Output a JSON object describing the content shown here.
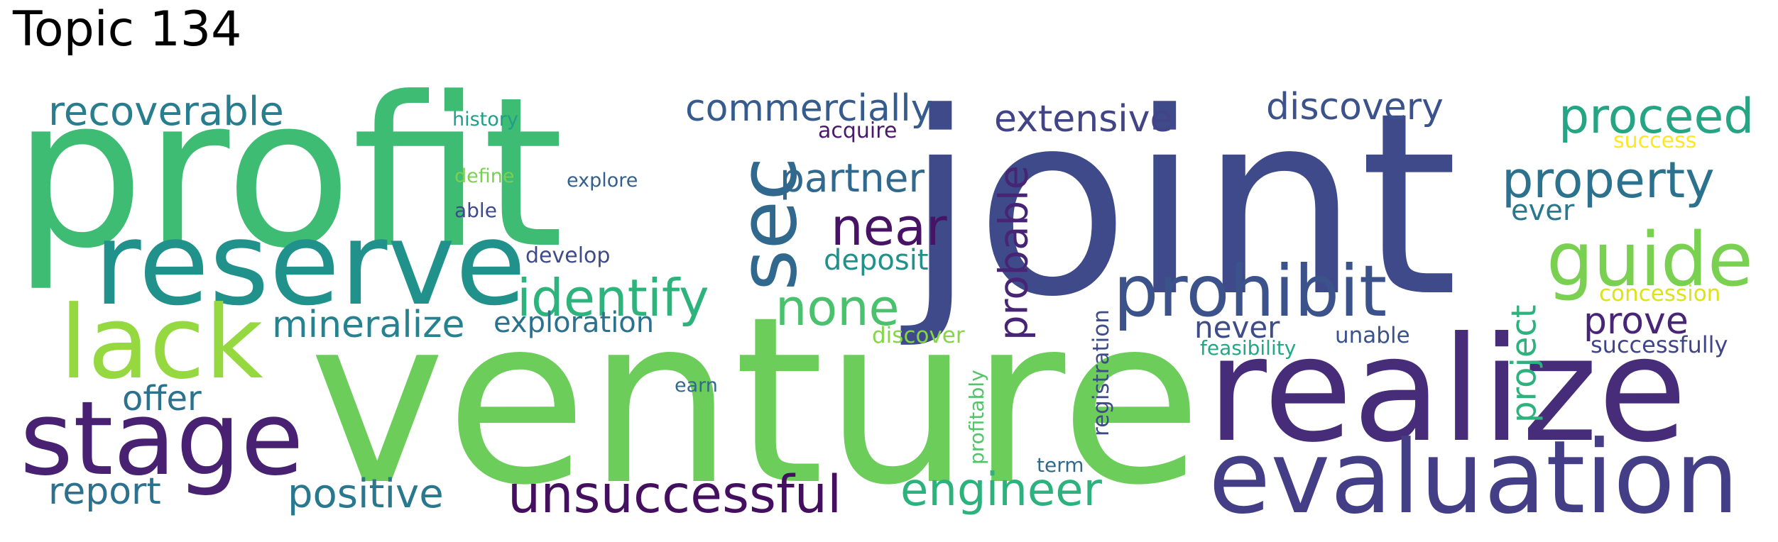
{
  "title": "Topic 134",
  "words": [
    {
      "text": "profit",
      "color": "#3fbc73"
    },
    {
      "text": "joint",
      "color": "#3e4a89"
    },
    {
      "text": "venture",
      "color": "#6ccd5a"
    },
    {
      "text": "realize",
      "color": "#472c7a"
    },
    {
      "text": "reserve",
      "color": "#21918c"
    },
    {
      "text": "evaluation",
      "color": "#433e85"
    },
    {
      "text": "stage",
      "color": "#482173"
    },
    {
      "text": "lack",
      "color": "#95d840"
    },
    {
      "text": "sec",
      "color": "#31688e"
    },
    {
      "text": "prohibit",
      "color": "#3b528b"
    },
    {
      "text": "guide",
      "color": "#7ad151"
    },
    {
      "text": "unsuccessful",
      "color": "#440f5e"
    },
    {
      "text": "probable",
      "color": "#482475"
    },
    {
      "text": "none",
      "color": "#4ac16d"
    },
    {
      "text": "property",
      "color": "#2c728e"
    },
    {
      "text": "proceed",
      "color": "#25a584"
    },
    {
      "text": "identify",
      "color": "#2eb37c"
    },
    {
      "text": "near",
      "color": "#471365"
    },
    {
      "text": "engineer",
      "color": "#2db27d"
    },
    {
      "text": "recoverable",
      "color": "#287d8e"
    },
    {
      "text": "positive",
      "color": "#2a788e"
    },
    {
      "text": "mineralize",
      "color": "#26828e"
    },
    {
      "text": "partner",
      "color": "#31688e"
    },
    {
      "text": "commercially",
      "color": "#365c8d"
    },
    {
      "text": "extensive",
      "color": "#414487"
    },
    {
      "text": "discovery",
      "color": "#3b528b"
    },
    {
      "text": "exploration",
      "color": "#2c728e"
    },
    {
      "text": "project",
      "color": "#2db27d"
    },
    {
      "text": "report",
      "color": "#2c728e"
    },
    {
      "text": "offer",
      "color": "#2c728e"
    },
    {
      "text": "prove",
      "color": "#482576"
    },
    {
      "text": "never",
      "color": "#3e4c8a"
    },
    {
      "text": "ever",
      "color": "#2a788e"
    },
    {
      "text": "deposit",
      "color": "#21918c"
    },
    {
      "text": "registration",
      "color": "#3e4c8a"
    },
    {
      "text": "successfully",
      "color": "#414487"
    },
    {
      "text": "concession",
      "color": "#dde318"
    },
    {
      "text": "success",
      "color": "#fde725"
    },
    {
      "text": "discover",
      "color": "#86d549"
    },
    {
      "text": "feasibility",
      "color": "#22a884"
    },
    {
      "text": "unable",
      "color": "#3b528b"
    },
    {
      "text": "profitably",
      "color": "#52c569"
    },
    {
      "text": "develop",
      "color": "#3e4a89"
    },
    {
      "text": "acquire",
      "color": "#481a6c"
    },
    {
      "text": "history",
      "color": "#1f9e89"
    },
    {
      "text": "define",
      "color": "#7ad151"
    },
    {
      "text": "explore",
      "color": "#355f8d"
    },
    {
      "text": "able",
      "color": "#3e4a89"
    },
    {
      "text": "earn",
      "color": "#31688e"
    },
    {
      "text": "term",
      "color": "#306a8e"
    }
  ]
}
